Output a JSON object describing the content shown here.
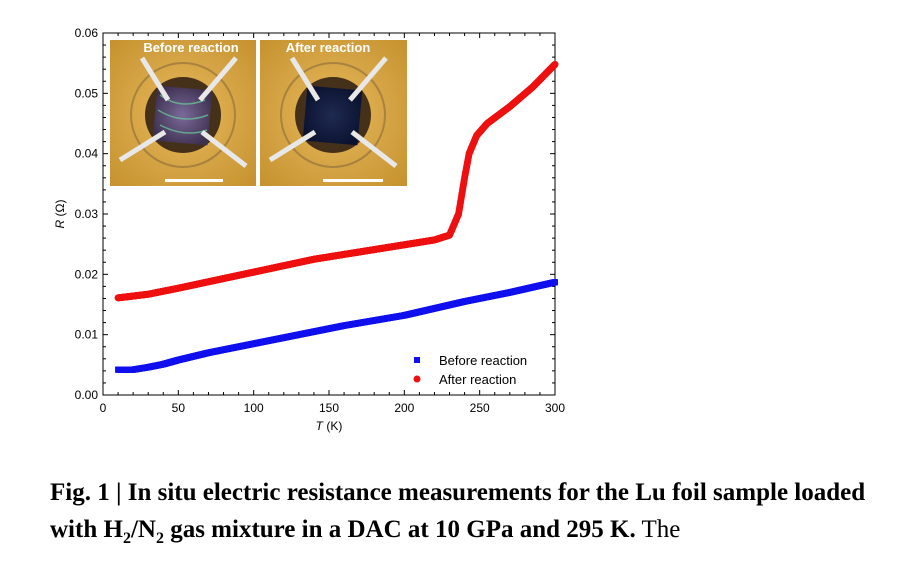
{
  "chart_data": {
    "type": "scatter",
    "xlabel_var": "T",
    "xlabel_unit": " (K)",
    "ylabel_var": "R",
    "ylabel_unit": " (Ω)",
    "xlim": [
      0,
      300
    ],
    "ylim": [
      0,
      0.06
    ],
    "x_ticks": [
      "0",
      "50",
      "100",
      "150",
      "200",
      "250",
      "300"
    ],
    "y_ticks": [
      "0.00",
      "0.01",
      "0.02",
      "0.03",
      "0.04",
      "0.05",
      "0.06"
    ],
    "legend_position": "bottom-right",
    "series": [
      {
        "name": "Before reaction",
        "marker": "square",
        "color": "#1010ee",
        "points": [
          [
            10,
            0.0042
          ],
          [
            20,
            0.0042
          ],
          [
            30,
            0.0046
          ],
          [
            40,
            0.0051
          ],
          [
            50,
            0.0058
          ],
          [
            70,
            0.007
          ],
          [
            100,
            0.0085
          ],
          [
            130,
            0.01
          ],
          [
            160,
            0.0115
          ],
          [
            200,
            0.0132
          ],
          [
            240,
            0.0155
          ],
          [
            270,
            0.017
          ],
          [
            300,
            0.0187
          ]
        ]
      },
      {
        "name": "After reaction",
        "marker": "circle",
        "color": "#ee1010",
        "points": [
          [
            10,
            0.0161
          ],
          [
            30,
            0.0167
          ],
          [
            50,
            0.0177
          ],
          [
            80,
            0.0193
          ],
          [
            110,
            0.0209
          ],
          [
            140,
            0.0225
          ],
          [
            170,
            0.0237
          ],
          [
            200,
            0.0249
          ],
          [
            220,
            0.0257
          ],
          [
            230,
            0.0265
          ],
          [
            236,
            0.03
          ],
          [
            240,
            0.036
          ],
          [
            243,
            0.04
          ],
          [
            248,
            0.043
          ],
          [
            255,
            0.045
          ],
          [
            270,
            0.0478
          ],
          [
            285,
            0.051
          ],
          [
            300,
            0.0548
          ]
        ]
      }
    ],
    "inset": {
      "labels": [
        "Before reaction",
        "After reaction"
      ]
    }
  },
  "caption": {
    "bold_part": "Fig. 1 | In situ electric resistance measurements for the Lu foil sample loaded with H",
    "sub1": "2",
    "mid": "/N",
    "sub2": "2",
    "bold_end": " gas mixture in a DAC at 10 GPa and 295 K.",
    "normal_end": " The"
  },
  "colors": {
    "before": "#1010ee",
    "after": "#ee1010",
    "inset_bg": "#d9a84a"
  }
}
